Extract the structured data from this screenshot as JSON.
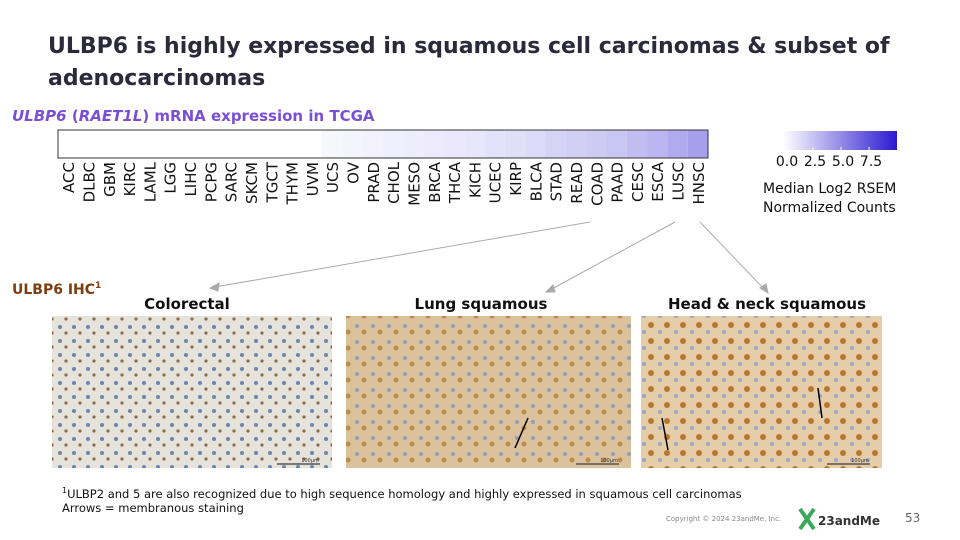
{
  "title_lines": [
    "ULBP6 is highly expressed in squamous cell carcinomas & subset of",
    "adenocarcinomas"
  ],
  "subtitle_parts": [
    "ULBP6",
    " (",
    "RAET1L",
    ") mRNA expression in TCGA"
  ],
  "chart_data": {
    "type": "heatmap",
    "categories": [
      "ACC",
      "DLBC",
      "GBM",
      "KIRC",
      "LAML",
      "LGG",
      "LIHC",
      "PCPG",
      "SARC",
      "SKCM",
      "TGCT",
      "THYM",
      "UVM",
      "UCS",
      "OV",
      "PRAD",
      "CHOL",
      "MESO",
      "BRCA",
      "THCA",
      "KICH",
      "UCEC",
      "KIRP",
      "BLCA",
      "STAD",
      "READ",
      "COAD",
      "PAAD",
      "CESC",
      "ESCA",
      "LUSC",
      "HNSC"
    ],
    "values": [
      0,
      0,
      0,
      0,
      0,
      0,
      0,
      0,
      0,
      0,
      0,
      0,
      0,
      0.4,
      0.5,
      0.6,
      0.7,
      0.8,
      0.9,
      1.0,
      1.1,
      1.3,
      1.4,
      1.6,
      1.9,
      2.1,
      2.3,
      2.5,
      2.9,
      3.2,
      3.7,
      4.2
    ],
    "colormap": [
      "#ffffff",
      "#2a1ad0"
    ],
    "clim": [
      0,
      10
    ],
    "cticks": [
      {
        "value": 0,
        "label": "0.0"
      },
      {
        "value": 2.5,
        "label": "2.5"
      },
      {
        "value": 5,
        "label": "5.0"
      },
      {
        "value": 7.5,
        "label": "7.5"
      }
    ],
    "colorbar_title": [
      "Median Log2 RSEM",
      "Normalized Counts"
    ]
  },
  "ihc": {
    "label": "ULBP6 IHC",
    "label_sup": "1",
    "panels": [
      {
        "title": "Colorectal",
        "scale": "100µm"
      },
      {
        "title": "Lung squamous",
        "scale": "100µm"
      },
      {
        "title": "Head & neck squamous",
        "scale": "100µm"
      }
    ]
  },
  "footnote": {
    "sup": "1",
    "text": "ULBP2 and 5 are also recognized due to high sequence homology and highly expressed in squamous cell carcinomas",
    "line2": "Arrows = membranous staining"
  },
  "copyright": "Copyright © 2024 23andMe, Inc.",
  "logo": "23andMe",
  "page_number": "53"
}
